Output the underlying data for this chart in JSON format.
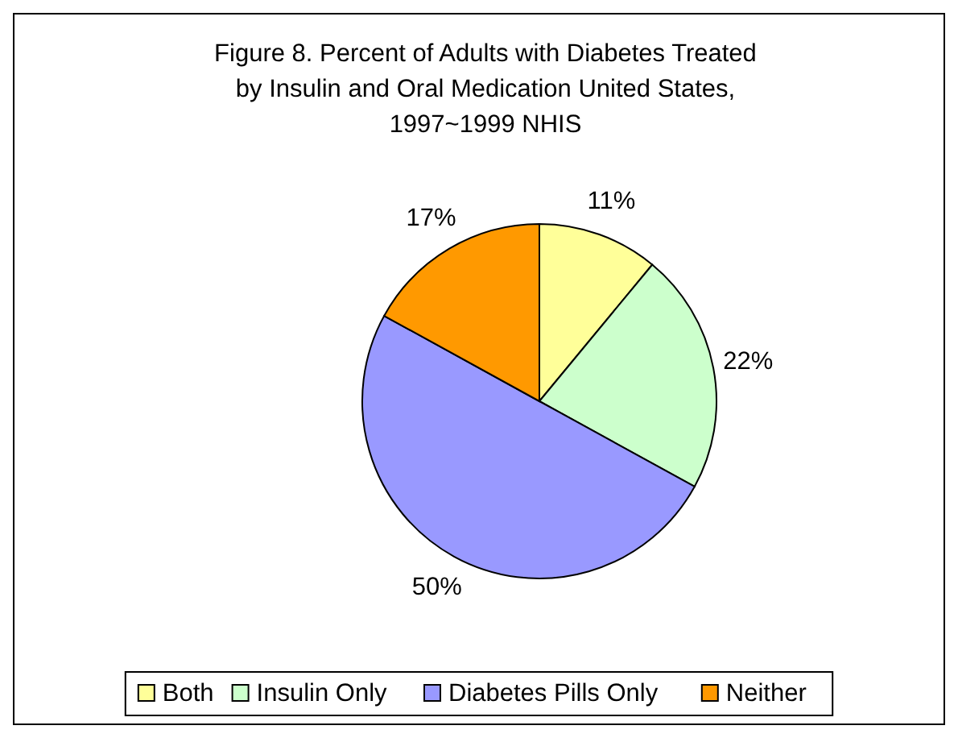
{
  "chart_data": {
    "type": "pie",
    "title": "Figure 8.  Percent of Adults with Diabetes Treated\nby Insulin and Oral Medication United States,\n1997~1999 NHIS",
    "categories": [
      "Both",
      "Insulin Only",
      "Diabetes Pills Only",
      "Neither"
    ],
    "values": [
      11,
      22,
      50,
      17
    ],
    "colors": [
      "#ffff99",
      "#ccffcc",
      "#9999ff",
      "#ff9900"
    ],
    "value_labels": [
      "11%",
      "22%",
      "50%",
      "17%"
    ],
    "legend": "bottom"
  }
}
